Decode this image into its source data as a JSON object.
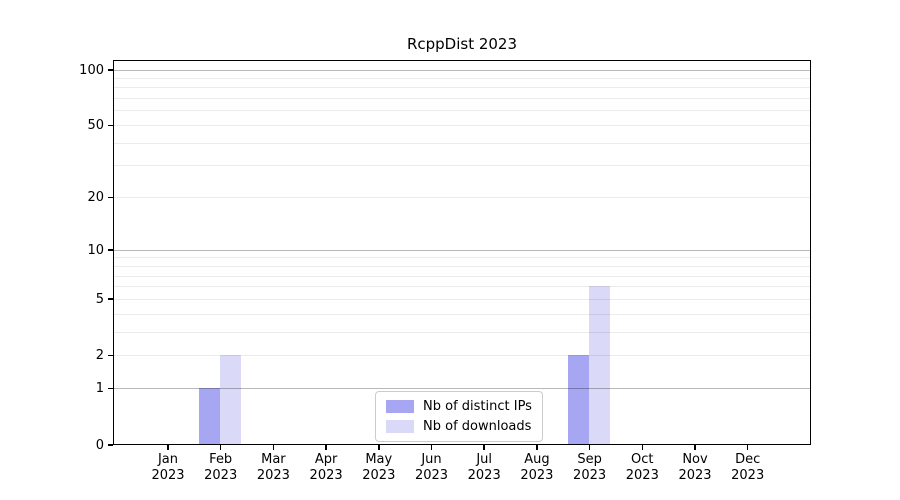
{
  "chart_data": {
    "type": "bar",
    "title": "RcppDist 2023",
    "categories": [
      "Jan",
      "Feb",
      "Mar",
      "Apr",
      "May",
      "Jun",
      "Jul",
      "Aug",
      "Sep",
      "Oct",
      "Nov",
      "Dec"
    ],
    "category_year": "2023",
    "series": [
      {
        "name": "Nb of distinct IPs",
        "color": "#a6a6f2",
        "values": [
          0,
          1,
          0,
          0,
          0,
          0,
          0,
          0,
          2,
          0,
          0,
          0
        ]
      },
      {
        "name": "Nb of downloads",
        "color": "#dadaf8",
        "values": [
          0,
          2,
          0,
          0,
          0,
          0,
          0,
          0,
          6,
          0,
          0,
          0
        ]
      }
    ],
    "y_ticks": [
      0,
      1,
      2,
      5,
      10,
      20,
      50,
      100
    ],
    "y_scale": "log1p",
    "ylim": [
      0,
      113
    ],
    "grid": "horizontal",
    "grid_major_values": [
      1,
      10,
      100
    ],
    "grid_minor_values": [
      2,
      3,
      4,
      5,
      6,
      7,
      8,
      9,
      20,
      30,
      40,
      50,
      60,
      70,
      80,
      90
    ],
    "legend_position": "bottom-center-inside"
  }
}
